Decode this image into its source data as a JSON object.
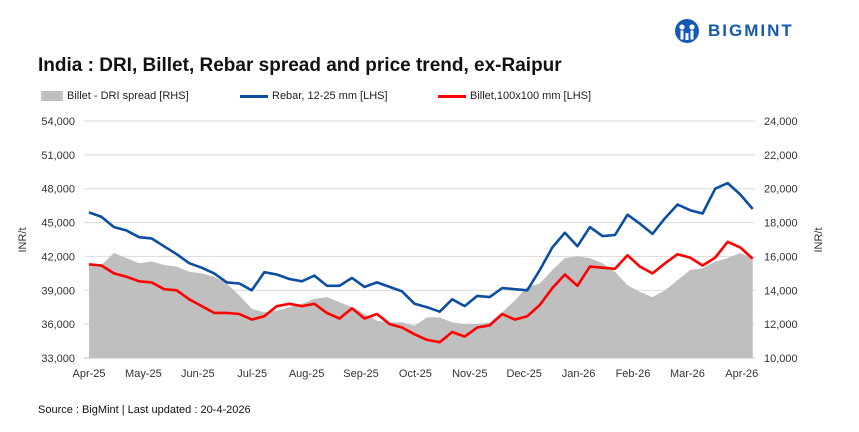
{
  "header": {
    "title": "India : DRI, Billet, Rebar spread and price trend, ex-Raipur",
    "logo_text": "BIGMINT"
  },
  "footer": {
    "source": "Source : BigMint | Last updated : 20-4-2026"
  },
  "colors": {
    "spread": "#bfbfbf",
    "rebar": "#0b4ea2",
    "billet": "#ff0000",
    "brand": "#1559b3",
    "grid": "#d9d9d9"
  },
  "chart_data": {
    "type": "line",
    "title": "India : DRI, Billet, Rebar spread and price trend, ex-Raipur",
    "ylabel": "INR/t",
    "y2label": "INR/t",
    "ylim": [
      33000,
      54000
    ],
    "y2lim": [
      10000,
      24000
    ],
    "yticks": [
      "54,000",
      "51,000",
      "48,000",
      "45,000",
      "42,000",
      "39,000",
      "36,000",
      "33,000"
    ],
    "y2ticks": [
      "24,000",
      "22,000",
      "20,000",
      "18,000",
      "16,000",
      "14,000",
      "12,000",
      "10,000"
    ],
    "xticks": [
      "Apr-25",
      "May-25",
      "Jun-25",
      "Jul-25",
      "Aug-25",
      "Sep-25",
      "Oct-25",
      "Nov-25",
      "Dec-25",
      "Jan-26",
      "Feb-26",
      "Mar-26",
      "Apr-26"
    ],
    "grid": true,
    "legend_position": "top",
    "x": [
      "2025-04-01",
      "2025-04-08",
      "2025-04-15",
      "2025-04-22",
      "2025-04-29",
      "2025-05-06",
      "2025-05-13",
      "2025-05-20",
      "2025-05-27",
      "2025-06-03",
      "2025-06-10",
      "2025-06-17",
      "2025-06-24",
      "2025-07-01",
      "2025-07-08",
      "2025-07-15",
      "2025-07-22",
      "2025-07-29",
      "2025-08-05",
      "2025-08-12",
      "2025-08-19",
      "2025-08-26",
      "2025-09-02",
      "2025-09-09",
      "2025-09-16",
      "2025-09-23",
      "2025-09-30",
      "2025-10-07",
      "2025-10-14",
      "2025-10-21",
      "2025-10-28",
      "2025-11-04",
      "2025-11-11",
      "2025-11-18",
      "2025-11-25",
      "2025-12-02",
      "2025-12-09",
      "2025-12-16",
      "2025-12-23",
      "2025-12-30",
      "2026-01-06",
      "2026-01-13",
      "2026-01-20",
      "2026-01-27",
      "2026-02-03",
      "2026-02-10",
      "2026-02-17",
      "2026-02-24",
      "2026-03-03",
      "2026-03-10",
      "2026-03-17",
      "2026-03-24",
      "2026-03-31",
      "2026-04-07"
    ],
    "series": [
      {
        "name": "Billet - DRI spread  [RHS]",
        "type": "area",
        "axis": "right",
        "values": [
          15500,
          15500,
          16200,
          15900,
          15600,
          15700,
          15500,
          15400,
          15100,
          15000,
          14800,
          14400,
          13700,
          12900,
          12700,
          12800,
          13000,
          13200,
          13500,
          13600,
          13300,
          13000,
          12600,
          12200,
          12100,
          12100,
          11900,
          12400,
          12400,
          12100,
          12000,
          12000,
          12100,
          12700,
          13400,
          14200,
          14400,
          15200,
          15900,
          16000,
          15900,
          15600,
          15100,
          14300,
          13900,
          13600,
          14000,
          14600,
          15200,
          15300,
          15700,
          15900,
          16200,
          15900
        ]
      },
      {
        "name": "Rebar, 12-25 mm [LHS]",
        "type": "line",
        "axis": "left",
        "values": [
          45900,
          45500,
          44600,
          44300,
          43700,
          43600,
          42900,
          42200,
          41400,
          41000,
          40500,
          39700,
          39600,
          39000,
          40600,
          40400,
          40000,
          39800,
          40300,
          39400,
          39400,
          40100,
          39300,
          39700,
          39300,
          38900,
          37800,
          37500,
          37100,
          38200,
          37600,
          38500,
          38400,
          39200,
          39100,
          39000,
          40800,
          42800,
          44100,
          42900,
          44600,
          43800,
          43900,
          45700,
          44900,
          44000,
          45400,
          46600,
          46100,
          45800,
          48000,
          48500,
          47500,
          46200
        ]
      },
      {
        "name": "Billet,100x100 mm [LHS]",
        "type": "line",
        "axis": "left",
        "values": [
          41300,
          41200,
          40500,
          40200,
          39800,
          39700,
          39100,
          39000,
          38200,
          37600,
          37000,
          37000,
          36900,
          36400,
          36700,
          37600,
          37800,
          37600,
          37800,
          37000,
          36500,
          37400,
          36500,
          36900,
          36000,
          35700,
          35100,
          34600,
          34400,
          35300,
          34900,
          35700,
          35900,
          36900,
          36400,
          36700,
          37700,
          39200,
          40400,
          39400,
          41100,
          41000,
          40900,
          42100,
          41100,
          40500,
          41400,
          42200,
          41900,
          41200,
          41900,
          43300,
          42800,
          41800
        ]
      }
    ]
  }
}
